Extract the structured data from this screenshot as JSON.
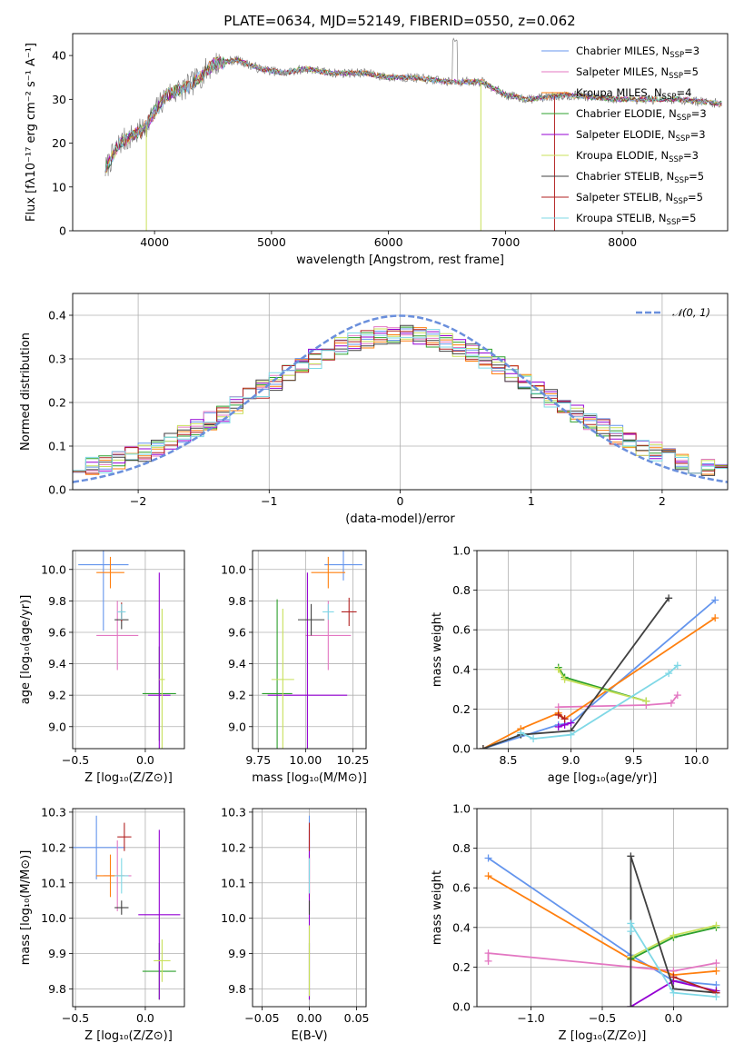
{
  "figure": {
    "title": "PLATE=0634, MJD=52149, FIBERID=0550, z=0.062"
  },
  "chart_data": [
    {
      "id": "spectrum",
      "type": "line",
      "xlabel": "wavelength [Angstrom, rest frame]",
      "ylabel": "Flux [fλ10⁻¹⁷ erg cm⁻² s⁻¹ A⁻¹]",
      "xlim": [
        3300,
        8900
      ],
      "ylim": [
        0,
        45
      ],
      "xticks": [
        4000,
        5000,
        6000,
        7000,
        8000
      ],
      "yticks": [
        0,
        10,
        20,
        30,
        40
      ],
      "grid": false,
      "legend_placement": "top-right",
      "observed_color": "#808080",
      "continuum_shape": {
        "x": [
          3580,
          3700,
          3900,
          4100,
          4300,
          4500,
          4700,
          4900,
          5100,
          5300,
          5500,
          5800,
          6000,
          6200,
          6500,
          6800,
          7000,
          7200,
          7500,
          8000,
          8500,
          8850
        ],
        "y": [
          14,
          20,
          23,
          31,
          33,
          38,
          39,
          37,
          36,
          37,
          36,
          36,
          35,
          35,
          34,
          34,
          31,
          30,
          31,
          30,
          30,
          29
        ]
      },
      "series": [
        {
          "name": "Chabrier MILES, N",
          "sub": "SSP",
          "suffix": "=3",
          "color": "#6495ed"
        },
        {
          "name": "Salpeter MILES, N",
          "sub": "SSP",
          "suffix": "=5",
          "color": "#e377c2"
        },
        {
          "name": "Kroupa MILES, N",
          "sub": "SSP",
          "suffix": "=4",
          "color": "#ff7f0e"
        },
        {
          "name": "Chabrier ELODIE, N",
          "sub": "SSP",
          "suffix": "=3",
          "color": "#2ca02c"
        },
        {
          "name": "Salpeter ELODIE, N",
          "sub": "SSP",
          "suffix": "=3",
          "color": "#9400d3"
        },
        {
          "name": "Kroupa ELODIE, N",
          "sub": "SSP",
          "suffix": "=3",
          "color": "#c8e05a"
        },
        {
          "name": "Chabrier STELIB, N",
          "sub": "SSP",
          "suffix": "=5",
          "color": "#404040"
        },
        {
          "name": "Salpeter STELIB, N",
          "sub": "SSP",
          "suffix": "=5",
          "color": "#b22222"
        },
        {
          "name": "Kroupa STELIB, N",
          "sub": "SSP",
          "suffix": "=5",
          "color": "#7fd8e6"
        }
      ]
    },
    {
      "id": "residuals",
      "type": "line",
      "xlabel": "(data-model)/error",
      "ylabel": "Normed distribution",
      "xlim": [
        -2.5,
        2.5
      ],
      "ylim": [
        0,
        0.45
      ],
      "xticks": [
        -2,
        -1,
        0,
        1,
        2
      ],
      "xtick_labels": [
        "−2",
        "−1",
        "0",
        "1",
        "2"
      ],
      "yticks": [
        0.0,
        0.1,
        0.2,
        0.3,
        0.4
      ],
      "ytick_labels": [
        "0.0",
        "0.1",
        "0.2",
        "0.3",
        "0.4"
      ],
      "grid": true,
      "legend_placement": "top-right",
      "reference": {
        "label": "𝒩(0, 1)",
        "mu": 0,
        "sigma": 1,
        "color": "#6a8fdc"
      },
      "bin_width": 0.1,
      "series_colors": [
        "#6495ed",
        "#e377c2",
        "#ff7f0e",
        "#2ca02c",
        "#9400d3",
        "#c8e05a",
        "#404040",
        "#b22222",
        "#7fd8e6"
      ]
    },
    {
      "id": "age-vs-Z",
      "type": "scatter",
      "xlabel": "Z [log₁₀(Z/Z⊙)]",
      "ylabel": "age  [log₁₀(age/yr)]",
      "xlim": [
        -0.52,
        0.28
      ],
      "ylim": [
        8.86,
        10.12
      ],
      "xticks": [
        -0.5,
        0.0
      ],
      "xtick_labels": [
        "−0.5",
        "0.0"
      ],
      "yticks": [
        9.0,
        9.2,
        9.4,
        9.6,
        9.8,
        10.0
      ],
      "ytick_labels": [
        "9.0",
        "9.2",
        "9.4",
        "9.6",
        "9.8",
        "10.0"
      ],
      "grid": true,
      "points": [
        {
          "x": -0.3,
          "y": 10.03,
          "xerr": 0.18,
          "yerr": 0.42,
          "color": "#6495ed"
        },
        {
          "x": -0.2,
          "y": 9.58,
          "xerr": 0.15,
          "yerr": 0.22,
          "color": "#e377c2"
        },
        {
          "x": -0.25,
          "y": 9.98,
          "xerr": 0.1,
          "yerr": 0.1,
          "color": "#ff7f0e"
        },
        {
          "x": 0.1,
          "y": 9.21,
          "xerr": 0.12,
          "yerr": 0.3,
          "color": "#2ca02c"
        },
        {
          "x": 0.1,
          "y": 9.2,
          "xerr": 0.08,
          "yerr": 0.78,
          "color": "#9400d3"
        },
        {
          "x": 0.12,
          "y": 9.3,
          "xerr": 0.02,
          "yerr": 0.45,
          "color": "#c8e05a"
        },
        {
          "x": -0.17,
          "y": 9.68,
          "xerr": 0.05,
          "yerr": 0.06,
          "color": "#404040"
        },
        {
          "x": -0.17,
          "y": 9.73,
          "xerr": 0.02,
          "yerr": 0.06,
          "color": "#b22222"
        },
        {
          "x": -0.17,
          "y": 9.73,
          "xerr": 0.03,
          "yerr": 0.05,
          "color": "#7fd8e6"
        }
      ]
    },
    {
      "id": "age-vs-mass",
      "type": "scatter",
      "xlabel": "mass [log₁₀(M/M⊙)]",
      "ylabel": "",
      "xlim": [
        9.72,
        10.32
      ],
      "ylim": [
        8.86,
        10.12
      ],
      "xticks": [
        9.75,
        10.0,
        10.25
      ],
      "xtick_labels": [
        "9.75",
        "10.00",
        "10.25"
      ],
      "yticks": [
        9.0,
        9.2,
        9.4,
        9.6,
        9.8,
        10.0
      ],
      "ytick_labels": [
        "9.0",
        "9.2",
        "9.4",
        "9.6",
        "9.8",
        "10.0"
      ],
      "grid": true,
      "points": [
        {
          "x": 10.2,
          "y": 10.03,
          "xerr": 0.1,
          "yerr": 0.1,
          "color": "#6495ed"
        },
        {
          "x": 10.12,
          "y": 9.58,
          "xerr": 0.12,
          "yerr": 0.22,
          "color": "#e377c2"
        },
        {
          "x": 10.12,
          "y": 9.98,
          "xerr": 0.09,
          "yerr": 0.1,
          "color": "#ff7f0e"
        },
        {
          "x": 9.85,
          "y": 9.21,
          "xerr": 0.08,
          "yerr": 0.6,
          "color": "#2ca02c"
        },
        {
          "x": 10.01,
          "y": 9.2,
          "xerr": 0.21,
          "yerr": 0.78,
          "color": "#9400d3"
        },
        {
          "x": 9.88,
          "y": 9.3,
          "xerr": 0.06,
          "yerr": 0.45,
          "color": "#c8e05a"
        },
        {
          "x": 10.03,
          "y": 9.68,
          "xerr": 0.07,
          "yerr": 0.1,
          "color": "#404040"
        },
        {
          "x": 10.23,
          "y": 9.73,
          "xerr": 0.04,
          "yerr": 0.09,
          "color": "#b22222"
        },
        {
          "x": 10.12,
          "y": 9.73,
          "xerr": 0.03,
          "yerr": 0.05,
          "color": "#7fd8e6"
        }
      ]
    },
    {
      "id": "weight-vs-age",
      "type": "line",
      "xlabel": "age  [log₁₀(age/yr)]",
      "ylabel": "mass weight",
      "xlim": [
        8.25,
        10.25
      ],
      "ylim": [
        0,
        1.0
      ],
      "xticks": [
        8.5,
        9.0,
        9.5,
        10.0
      ],
      "xtick_labels": [
        "8.5",
        "9.0",
        "9.5",
        "10.0"
      ],
      "yticks": [
        0.0,
        0.2,
        0.4,
        0.6,
        0.8,
        1.0
      ],
      "ytick_labels": [
        "0.0",
        "0.2",
        "0.4",
        "0.6",
        "0.8",
        "1.0"
      ],
      "grid": true,
      "series": [
        {
          "color": "#6495ed",
          "x": [
            8.3,
            8.9,
            9.0,
            10.15
          ],
          "y": [
            0.0,
            0.12,
            0.13,
            0.75
          ]
        },
        {
          "color": "#e377c2",
          "x": [
            8.9,
            9.6,
            9.8,
            9.85
          ],
          "y": [
            0.21,
            0.22,
            0.23,
            0.27
          ]
        },
        {
          "color": "#ff7f0e",
          "x": [
            8.3,
            8.6,
            8.9,
            8.95,
            10.15
          ],
          "y": [
            0.0,
            0.1,
            0.18,
            0.15,
            0.66
          ]
        },
        {
          "color": "#2ca02c",
          "x": [
            8.9,
            8.95,
            9.6
          ],
          "y": [
            0.41,
            0.36,
            0.24
          ]
        },
        {
          "color": "#9400d3",
          "x": [
            8.9,
            8.95,
            9.0
          ],
          "y": [
            0.11,
            0.12,
            0.13
          ]
        },
        {
          "color": "#c8e05a",
          "x": [
            8.9,
            8.95,
            9.6
          ],
          "y": [
            0.4,
            0.35,
            0.24
          ]
        },
        {
          "color": "#404040",
          "x": [
            8.3,
            8.6,
            9.0,
            9.78
          ],
          "y": [
            0.0,
            0.07,
            0.09,
            0.76
          ]
        },
        {
          "color": "#b22222",
          "x": [
            8.9,
            8.95
          ],
          "y": [
            0.17,
            0.15
          ]
        },
        {
          "color": "#7fd8e6",
          "x": [
            8.6,
            8.7,
            9.0,
            9.78,
            9.85
          ],
          "y": [
            0.08,
            0.05,
            0.07,
            0.38,
            0.42
          ]
        }
      ]
    },
    {
      "id": "mass-vs-Z",
      "type": "scatter",
      "xlabel": "Z [log₁₀(Z/Z⊙)]",
      "ylabel": "mass [log₁₀(M/M⊙)]",
      "xlim": [
        -0.52,
        0.28
      ],
      "ylim": [
        9.75,
        10.31
      ],
      "xticks": [
        -0.5,
        0.0
      ],
      "xtick_labels": [
        "−0.5",
        "0.0"
      ],
      "yticks": [
        9.8,
        9.9,
        10.0,
        10.1,
        10.2,
        10.3
      ],
      "ytick_labels": [
        "9.8",
        "9.9",
        "10.0",
        "10.1",
        "10.2",
        "10.3"
      ],
      "grid": true,
      "points": [
        {
          "x": -0.35,
          "y": 10.2,
          "xerr": 0.2,
          "yerr": 0.09,
          "color": "#6495ed"
        },
        {
          "x": -0.2,
          "y": 10.12,
          "xerr": 0.1,
          "yerr": 0.1,
          "color": "#e377c2"
        },
        {
          "x": -0.25,
          "y": 10.12,
          "xerr": 0.1,
          "yerr": 0.06,
          "color": "#ff7f0e"
        },
        {
          "x": 0.1,
          "y": 9.85,
          "xerr": 0.12,
          "yerr": 0.08,
          "color": "#2ca02c"
        },
        {
          "x": 0.1,
          "y": 10.01,
          "xerr": 0.15,
          "yerr": 0.24,
          "color": "#9400d3"
        },
        {
          "x": 0.12,
          "y": 9.88,
          "xerr": 0.06,
          "yerr": 0.06,
          "color": "#c8e05a"
        },
        {
          "x": -0.17,
          "y": 10.03,
          "xerr": 0.05,
          "yerr": 0.02,
          "color": "#404040"
        },
        {
          "x": -0.15,
          "y": 10.23,
          "xerr": 0.05,
          "yerr": 0.04,
          "color": "#b22222"
        },
        {
          "x": -0.17,
          "y": 10.12,
          "xerr": 0.05,
          "yerr": 0.05,
          "color": "#7fd8e6"
        }
      ]
    },
    {
      "id": "mass-vs-EBV",
      "type": "scatter",
      "xlabel": "E(B-V)",
      "ylabel": "",
      "xlim": [
        -0.06,
        0.06
      ],
      "ylim": [
        9.75,
        10.31
      ],
      "xticks": [
        -0.05,
        0.0,
        0.05
      ],
      "xtick_labels": [
        "−0.05",
        "0.00",
        "0.05"
      ],
      "yticks": [
        9.8,
        9.9,
        10.0,
        10.1,
        10.2,
        10.3
      ],
      "ytick_labels": [
        "9.8",
        "9.9",
        "10.0",
        "10.1",
        "10.2",
        "10.3"
      ],
      "grid": true,
      "points": [
        {
          "x": 0.0,
          "y": 10.2,
          "xerr": 0.0,
          "yerr": 0.09,
          "color": "#6495ed"
        },
        {
          "x": 0.0,
          "y": 10.12,
          "xerr": 0.0,
          "yerr": 0.1,
          "color": "#e377c2"
        },
        {
          "x": 0.0,
          "y": 10.12,
          "xerr": 0.0,
          "yerr": 0.06,
          "color": "#ff7f0e"
        },
        {
          "x": 0.0,
          "y": 9.85,
          "xerr": 0.0,
          "yerr": 0.08,
          "color": "#2ca02c"
        },
        {
          "x": 0.0,
          "y": 10.01,
          "xerr": 0.0,
          "yerr": 0.24,
          "color": "#9400d3"
        },
        {
          "x": 0.0,
          "y": 9.88,
          "xerr": 0.0,
          "yerr": 0.1,
          "color": "#c8e05a"
        },
        {
          "x": 0.0,
          "y": 10.03,
          "xerr": 0.0,
          "yerr": 0.02,
          "color": "#404040"
        },
        {
          "x": 0.0,
          "y": 10.23,
          "xerr": 0.0,
          "yerr": 0.04,
          "color": "#b22222"
        },
        {
          "x": 0.0,
          "y": 10.12,
          "xerr": 0.0,
          "yerr": 0.05,
          "color": "#7fd8e6"
        }
      ]
    },
    {
      "id": "weight-vs-Z",
      "type": "line",
      "xlabel": "Z [log₁₀(Z/Z⊙)]",
      "ylabel": "mass weight",
      "xlim": [
        -1.38,
        0.38
      ],
      "ylim": [
        0,
        1.0
      ],
      "xticks": [
        -1.0,
        -0.5,
        0.0
      ],
      "xtick_labels": [
        "−1.0",
        "−0.5",
        "0.0"
      ],
      "yticks": [
        0.0,
        0.2,
        0.4,
        0.6,
        0.8,
        1.0
      ],
      "ytick_labels": [
        "0.0",
        "0.2",
        "0.4",
        "0.6",
        "0.8",
        "1.0"
      ],
      "grid": true,
      "series": [
        {
          "color": "#6495ed",
          "x": [
            -1.3,
            -0.3,
            0.0,
            0.3
          ],
          "y": [
            0.75,
            0.26,
            0.13,
            0.11
          ]
        },
        {
          "color": "#e377c2",
          "x": [
            -1.3,
            -1.3,
            0.0,
            0.3
          ],
          "y": [
            0.23,
            0.27,
            0.18,
            0.22
          ]
        },
        {
          "color": "#ff7f0e",
          "x": [
            -1.3,
            -0.3,
            0.0,
            0.3
          ],
          "y": [
            0.66,
            0.24,
            0.16,
            0.18
          ]
        },
        {
          "color": "#2ca02c",
          "x": [
            -0.3,
            0.0,
            0.3
          ],
          "y": [
            0.24,
            0.35,
            0.4
          ]
        },
        {
          "color": "#9400d3",
          "x": [
            -0.3,
            0.0,
            0.3
          ],
          "y": [
            0.0,
            0.13,
            0.08
          ]
        },
        {
          "color": "#c8e05a",
          "x": [
            -0.3,
            0.0,
            0.3
          ],
          "y": [
            0.25,
            0.36,
            0.41
          ]
        },
        {
          "color": "#404040",
          "x": [
            -0.3,
            -0.3,
            0.0,
            0.3
          ],
          "y": [
            0.0,
            0.76,
            0.09,
            0.07
          ]
        },
        {
          "color": "#b22222",
          "x": [
            0.0,
            0.3
          ],
          "y": [
            0.15,
            0.07
          ]
        },
        {
          "color": "#7fd8e6",
          "x": [
            -0.3,
            -0.3,
            0.0,
            0.3
          ],
          "y": [
            0.38,
            0.42,
            0.07,
            0.05
          ]
        }
      ]
    }
  ]
}
